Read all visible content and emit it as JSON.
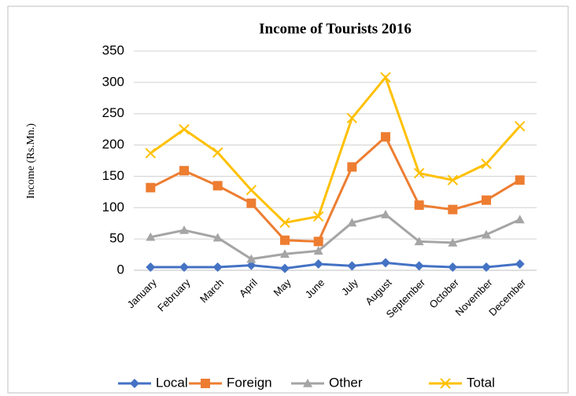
{
  "chart_data": {
    "type": "line",
    "title": "Income of Tourists 2016",
    "y_label": "Income (Rs.Mn.)",
    "categories": [
      "January",
      "February",
      "March",
      "April",
      "May",
      "June",
      "July",
      "August",
      "September",
      "October",
      "November",
      "December"
    ],
    "series": [
      {
        "name": "Local",
        "color": "#4472c4",
        "marker": "diamond",
        "values": [
          5,
          5,
          5,
          8,
          3,
          10,
          7,
          12,
          7,
          5,
          5,
          10
        ]
      },
      {
        "name": "Foreign",
        "color": "#ed7d31",
        "marker": "square",
        "values": [
          132,
          159,
          135,
          107,
          48,
          46,
          165,
          213,
          104,
          97,
          112,
          144
        ]
      },
      {
        "name": "Other",
        "color": "#a5a5a5",
        "marker": "triangle",
        "values": [
          53,
          64,
          52,
          18,
          26,
          31,
          76,
          89,
          46,
          44,
          57,
          81
        ]
      },
      {
        "name": "Total",
        "color": "#ffc000",
        "marker": "x",
        "values": [
          187,
          225,
          188,
          128,
          76,
          86,
          243,
          308,
          155,
          144,
          170,
          230
        ]
      }
    ],
    "ylim": [
      0,
      350
    ],
    "yticks": [
      0,
      50,
      100,
      150,
      200,
      250,
      300,
      350
    ],
    "grid": true,
    "legend": "bottom"
  }
}
